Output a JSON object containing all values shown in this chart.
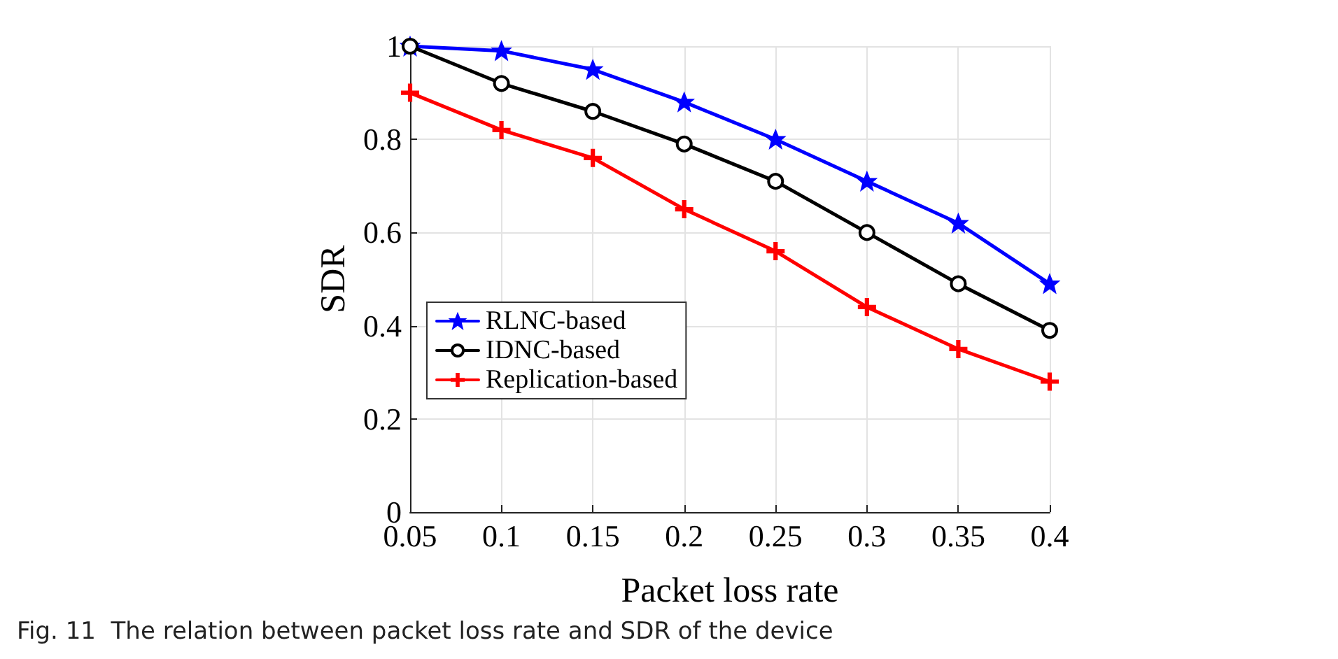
{
  "chart_data": {
    "type": "line",
    "xlabel": "Packet loss rate",
    "ylabel": "SDR",
    "x": [
      0.05,
      0.1,
      0.15,
      0.2,
      0.25,
      0.3,
      0.35,
      0.4
    ],
    "series": [
      {
        "name": "RLNC-based",
        "color": "#0000ff",
        "marker": "star",
        "values": [
          1,
          0.99,
          0.95,
          0.88,
          0.8,
          0.71,
          0.62,
          0.49
        ]
      },
      {
        "name": "IDNC-based",
        "color": "#000000",
        "marker": "circle",
        "values": [
          1,
          0.92,
          0.86,
          0.79,
          0.71,
          0.6,
          0.49,
          0.39
        ]
      },
      {
        "name": "Replication-based",
        "color": "#ff0000",
        "marker": "cross",
        "values": [
          0.9,
          0.82,
          0.76,
          0.65,
          0.56,
          0.44,
          0.35,
          0.28
        ]
      }
    ],
    "xlim": [
      0.05,
      0.4
    ],
    "xticks": [
      0.05,
      0.1,
      0.15,
      0.2,
      0.25,
      0.3,
      0.35,
      0.4
    ],
    "ylim": [
      0,
      1
    ],
    "yticks": [
      0,
      0.2,
      0.4,
      0.6,
      0.8,
      1
    ],
    "grid": true,
    "legend": "bottom left",
    "line_style": "solid",
    "annotations": [
      "Fig. 11  The relation between packet loss rate and SDR of the device"
    ]
  }
}
